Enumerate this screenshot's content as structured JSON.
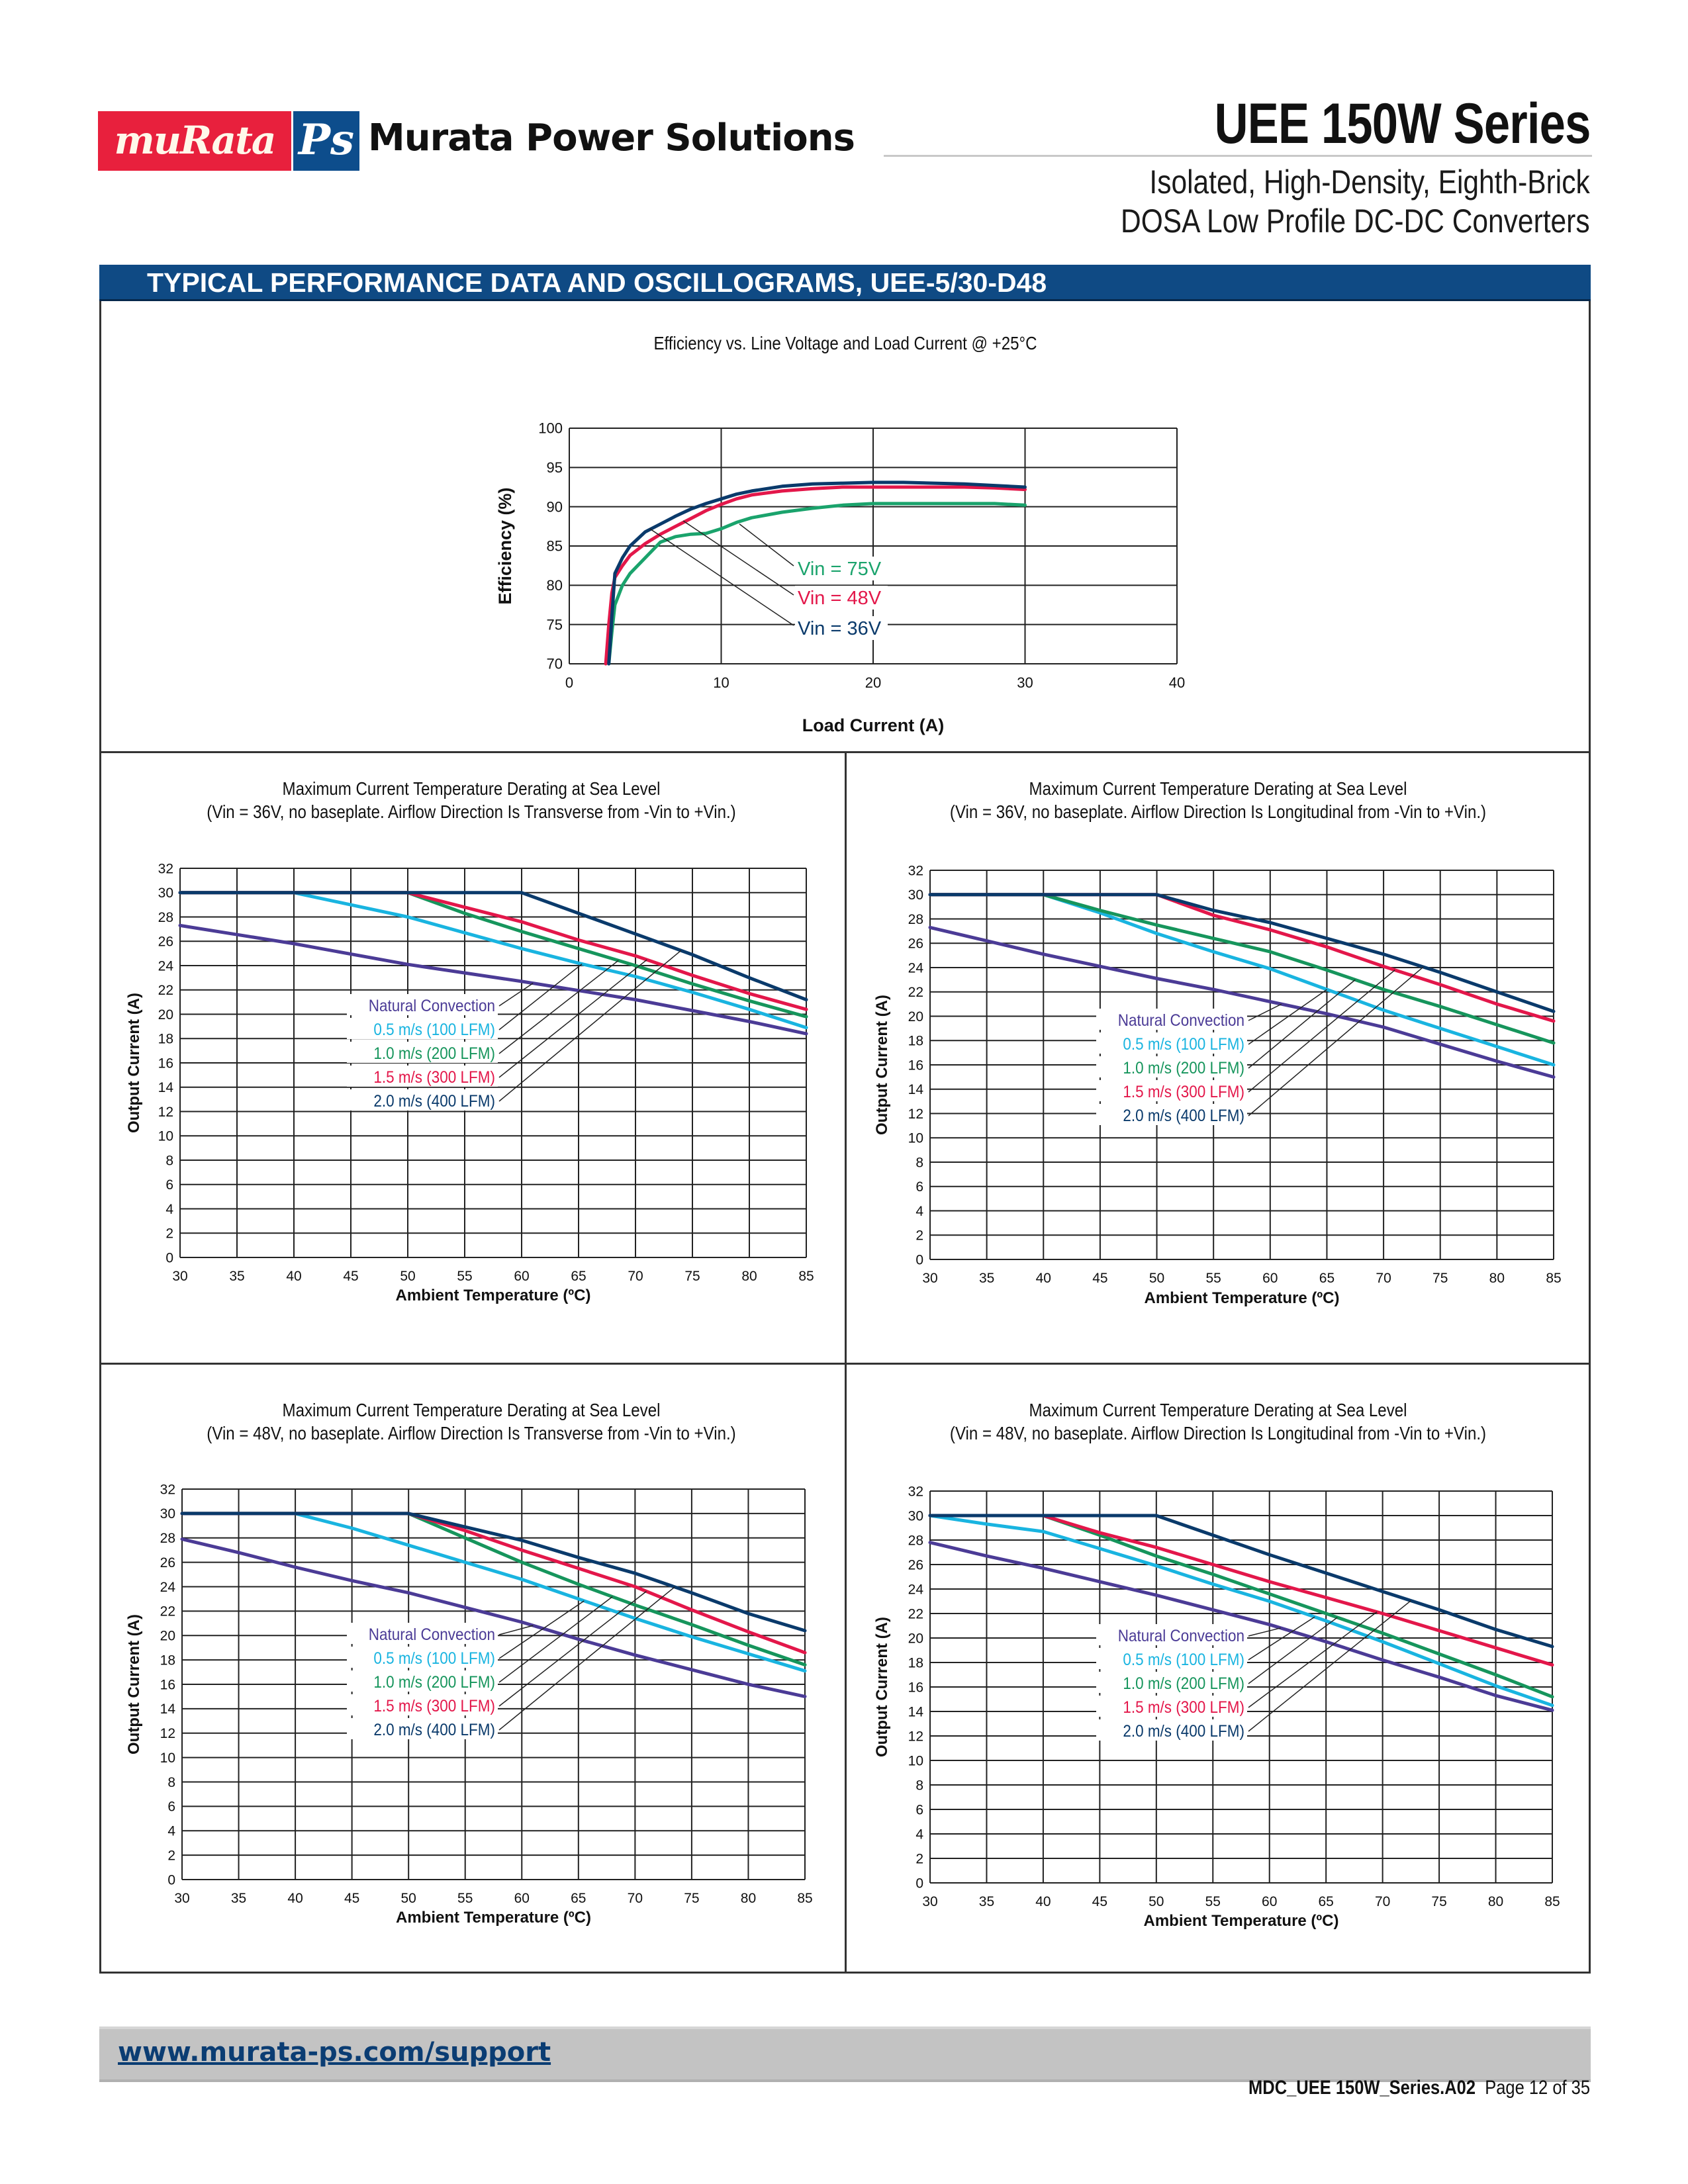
{
  "header": {
    "logo_murata": "muRata",
    "logo_ps": "Ps",
    "brand": "Murata Power Solutions",
    "series_title": "UEE 150W Series",
    "subtitle_line1": "Isolated, High-Density, Eighth-Brick",
    "subtitle_line2": "DOSA Low Profile DC-DC Converters"
  },
  "section": {
    "title": "TYPICAL PERFORMANCE DATA AND OSCILLOGRAMS, UEE-5/30-D48"
  },
  "colors": {
    "brand_red": "#e8203d",
    "brand_blue": "#0d4d8c",
    "section_bar": "#0f4a84",
    "natural": "#4b3b96",
    "air05": "#19b4e0",
    "air10": "#16955c",
    "air15": "#e3174a",
    "air20": "#0a3a6b",
    "vin75": "#1aa36c",
    "vin48": "#e3174a",
    "vin36": "#0a3a6b"
  },
  "chart_data": [
    {
      "type": "line",
      "title": "Efficiency vs. Line Voltage and Load Current @ +25°C",
      "xlabel": "Load Current (A)",
      "ylabel": "Efficiency (%)",
      "xlim": [
        0,
        40
      ],
      "ylim": [
        70,
        100
      ],
      "xticks": [
        "0",
        "10",
        "20",
        "30",
        "40"
      ],
      "yticks": [
        "70",
        "75",
        "80",
        "85",
        "90",
        "95",
        "100"
      ],
      "grid": true,
      "series": [
        {
          "name": "Vin = 75V",
          "color_key": "vin75",
          "x": [
            2.6,
            2.8,
            3.0,
            3.5,
            4,
            5,
            6,
            7,
            8,
            9,
            10,
            11,
            12,
            14,
            16,
            18,
            20,
            22,
            24,
            26,
            28,
            30
          ],
          "y": [
            70,
            74,
            77.5,
            80,
            81.5,
            83.5,
            85.5,
            86.2,
            86.5,
            86.6,
            87.2,
            88,
            88.6,
            89.3,
            89.8,
            90.2,
            90.4,
            90.4,
            90.4,
            90.4,
            90.4,
            90.2
          ]
        },
        {
          "name": "Vin = 48V",
          "color_key": "vin48",
          "x": [
            2.4,
            2.6,
            2.8,
            3.0,
            3.5,
            4,
            5,
            6,
            7,
            8,
            9,
            10,
            11,
            12,
            14,
            16,
            18,
            20,
            22,
            24,
            26,
            28,
            30
          ],
          "y": [
            70,
            75,
            79,
            81,
            82.5,
            83.8,
            85.3,
            86.5,
            87.5,
            88.5,
            89.5,
            90.3,
            91,
            91.5,
            92,
            92.3,
            92.5,
            92.5,
            92.5,
            92.5,
            92.5,
            92.4,
            92.2
          ]
        },
        {
          "name": "Vin = 36V",
          "color_key": "vin36",
          "x": [
            2.6,
            2.8,
            3.0,
            3.5,
            4,
            5,
            6,
            7,
            8,
            9,
            10,
            11,
            12,
            14,
            16,
            18,
            20,
            22,
            24,
            26,
            28,
            30
          ],
          "y": [
            70,
            76,
            81.5,
            83.5,
            85,
            86.8,
            87.8,
            88.8,
            89.7,
            90.4,
            91,
            91.6,
            92,
            92.6,
            92.9,
            93,
            93.1,
            93.1,
            93,
            92.9,
            92.7,
            92.5
          ]
        }
      ],
      "annotations": [
        "Vin = 75V",
        "Vin = 48V",
        "Vin = 36V"
      ]
    },
    {
      "type": "line",
      "title": "Maximum Current Temperature Derating at Sea Level",
      "subtitle": "(Vin = 36V, no baseplate. Airflow Direction Is Transverse from -Vin to +Vin.)",
      "xlabel": "Ambient Temperature (ºC)",
      "ylabel": "Output Current (A)",
      "xlim": [
        30,
        85
      ],
      "ylim": [
        0,
        32
      ],
      "xticks": [
        "30",
        "35",
        "40",
        "45",
        "50",
        "55",
        "60",
        "65",
        "70",
        "75",
        "80",
        "85"
      ],
      "yticks": [
        "0",
        "2",
        "4",
        "6",
        "8",
        "10",
        "12",
        "14",
        "16",
        "18",
        "20",
        "22",
        "24",
        "26",
        "28",
        "30",
        "32"
      ],
      "grid": true,
      "series": [
        {
          "name": "Natural Convection",
          "color_key": "natural",
          "x": [
            30,
            40,
            50,
            60,
            70,
            75,
            80,
            85
          ],
          "y": [
            27.3,
            25.8,
            24.1,
            22.7,
            21.2,
            20.3,
            19.4,
            18.4
          ]
        },
        {
          "name": "0.5 m/s (100 LFM)",
          "color_key": "air05",
          "x": [
            30,
            40,
            50,
            60,
            65,
            70,
            75,
            80,
            85
          ],
          "y": [
            30,
            30,
            28,
            25.4,
            24.2,
            23.1,
            21.8,
            20.4,
            18.9
          ]
        },
        {
          "name": "1.0 m/s (200 LFM)",
          "color_key": "air10",
          "x": [
            30,
            50,
            55,
            60,
            65,
            70,
            75,
            80,
            85
          ],
          "y": [
            30,
            30,
            28.3,
            26.8,
            25.4,
            24,
            22.5,
            21.1,
            19.8
          ]
        },
        {
          "name": "1.5 m/s (300 LFM)",
          "color_key": "air15",
          "x": [
            30,
            50,
            55,
            60,
            65,
            70,
            75,
            80,
            85
          ],
          "y": [
            30,
            30,
            28.8,
            27.6,
            26.1,
            24.8,
            23.2,
            21.7,
            20.4
          ]
        },
        {
          "name": "2.0 m/s (400 LFM)",
          "color_key": "air20",
          "x": [
            30,
            60,
            65,
            70,
            75,
            80,
            85
          ],
          "y": [
            30,
            30,
            28.3,
            26.6,
            24.9,
            23,
            21.2
          ]
        }
      ]
    },
    {
      "type": "line",
      "title": "Maximum Current Temperature Derating at Sea Level",
      "subtitle": "(Vin = 36V, no baseplate. Airflow Direction Is Longitudinal from -Vin to +Vin.)",
      "xlabel": "Ambient Temperature (ºC)",
      "ylabel": "Output Current (A)",
      "xlim": [
        30,
        85
      ],
      "ylim": [
        0,
        32
      ],
      "xticks": [
        "30",
        "35",
        "40",
        "45",
        "50",
        "55",
        "60",
        "65",
        "70",
        "75",
        "80",
        "85"
      ],
      "yticks": [
        "0",
        "2",
        "4",
        "6",
        "8",
        "10",
        "12",
        "14",
        "16",
        "18",
        "20",
        "22",
        "24",
        "26",
        "28",
        "30",
        "32"
      ],
      "grid": true,
      "series": [
        {
          "name": "Natural Convection",
          "color_key": "natural",
          "x": [
            30,
            35,
            40,
            45,
            50,
            55,
            60,
            65,
            70,
            75,
            80,
            85
          ],
          "y": [
            27.3,
            26.2,
            25.1,
            24.1,
            23.1,
            22.2,
            21.2,
            20.2,
            19.1,
            17.7,
            16.3,
            15
          ]
        },
        {
          "name": "0.5 m/s (100 LFM)",
          "color_key": "air05",
          "x": [
            30,
            40,
            45,
            50,
            55,
            60,
            65,
            70,
            75,
            80,
            85
          ],
          "y": [
            30,
            30,
            28.5,
            26.8,
            25.3,
            23.9,
            22.2,
            20.5,
            19,
            17.5,
            16
          ]
        },
        {
          "name": "1.0 m/s (200 LFM)",
          "color_key": "air10",
          "x": [
            30,
            40,
            45,
            50,
            55,
            60,
            65,
            70,
            75,
            80,
            85
          ],
          "y": [
            30,
            30,
            28.7,
            27.5,
            26.4,
            25.3,
            23.8,
            22.2,
            20.8,
            19.3,
            17.8
          ]
        },
        {
          "name": "1.5 m/s (300 LFM)",
          "color_key": "air15",
          "x": [
            30,
            50,
            55,
            60,
            65,
            70,
            75,
            80,
            85
          ],
          "y": [
            30,
            30,
            28.3,
            27.1,
            25.7,
            24.1,
            22.6,
            21,
            19.6
          ]
        },
        {
          "name": "2.0 m/s (400 LFM)",
          "color_key": "air20",
          "x": [
            30,
            50,
            55,
            60,
            65,
            70,
            75,
            80,
            85
          ],
          "y": [
            30,
            30,
            28.7,
            27.7,
            26.4,
            25.1,
            23.6,
            22,
            20.4
          ]
        }
      ]
    },
    {
      "type": "line",
      "title": "Maximum Current Temperature Derating at Sea Level",
      "subtitle": "(Vin = 48V, no baseplate. Airflow Direction Is Transverse from -Vin to +Vin.)",
      "xlabel": "Ambient Temperature (ºC)",
      "ylabel": "Output Current (A)",
      "xlim": [
        30,
        85
      ],
      "ylim": [
        0,
        32
      ],
      "xticks": [
        "30",
        "35",
        "40",
        "45",
        "50",
        "55",
        "60",
        "65",
        "70",
        "75",
        "80",
        "85"
      ],
      "yticks": [
        "0",
        "2",
        "4",
        "6",
        "8",
        "10",
        "12",
        "14",
        "16",
        "18",
        "20",
        "22",
        "24",
        "26",
        "28",
        "30",
        "32"
      ],
      "grid": true,
      "series": [
        {
          "name": "Natural Convection",
          "color_key": "natural",
          "x": [
            30,
            35,
            40,
            45,
            50,
            55,
            60,
            65,
            70,
            75,
            80,
            85
          ],
          "y": [
            27.9,
            26.8,
            25.6,
            24.5,
            23.5,
            22.3,
            21.1,
            19.7,
            18.4,
            17.2,
            16,
            15
          ]
        },
        {
          "name": "0.5 m/s (100 LFM)",
          "color_key": "air05",
          "x": [
            30,
            40,
            45,
            50,
            55,
            60,
            65,
            70,
            75,
            80,
            85
          ],
          "y": [
            30,
            30,
            28.8,
            27.4,
            26,
            24.6,
            23,
            21.4,
            19.9,
            18.5,
            17.1
          ]
        },
        {
          "name": "1.0 m/s (200 LFM)",
          "color_key": "air10",
          "x": [
            30,
            50,
            55,
            60,
            65,
            70,
            75,
            80,
            85
          ],
          "y": [
            30,
            30,
            28,
            26,
            24.2,
            22.5,
            20.9,
            19.2,
            17.6
          ]
        },
        {
          "name": "1.5 m/s (300 LFM)",
          "color_key": "air15",
          "x": [
            30,
            50,
            55,
            60,
            65,
            70,
            75,
            80,
            85
          ],
          "y": [
            30,
            30,
            28.6,
            27,
            25.5,
            24,
            22.1,
            20.3,
            18.6
          ]
        },
        {
          "name": "2.0 m/s (400 LFM)",
          "color_key": "air20",
          "x": [
            30,
            50,
            55,
            60,
            65,
            70,
            75,
            80,
            85
          ],
          "y": [
            30,
            30,
            28.9,
            27.8,
            26.4,
            25.1,
            23.5,
            21.8,
            20.4
          ]
        }
      ]
    },
    {
      "type": "line",
      "title": "Maximum Current Temperature Derating at Sea Level",
      "subtitle": "(Vin = 48V, no baseplate. Airflow Direction Is Longitudinal from -Vin to +Vin.)",
      "xlabel": "Ambient Temperature (ºC)",
      "ylabel": "Output Current (A)",
      "xlim": [
        30,
        85
      ],
      "ylim": [
        0,
        32
      ],
      "xticks": [
        "30",
        "35",
        "40",
        "45",
        "50",
        "55",
        "60",
        "65",
        "70",
        "75",
        "80",
        "85"
      ],
      "yticks": [
        "0",
        "2",
        "4",
        "6",
        "8",
        "10",
        "12",
        "14",
        "16",
        "18",
        "20",
        "22",
        "24",
        "26",
        "28",
        "30",
        "32"
      ],
      "grid": true,
      "series": [
        {
          "name": "Natural Convection",
          "color_key": "natural",
          "x": [
            30,
            35,
            40,
            45,
            50,
            55,
            60,
            65,
            70,
            75,
            80,
            85
          ],
          "y": [
            27.8,
            26.7,
            25.7,
            24.6,
            23.5,
            22.3,
            21.1,
            19.7,
            18.2,
            16.8,
            15.3,
            14.1
          ]
        },
        {
          "name": "0.5 m/s (100 LFM)",
          "color_key": "air05",
          "x": [
            30,
            35,
            40,
            45,
            50,
            55,
            60,
            65,
            70,
            75,
            80,
            85
          ],
          "y": [
            30,
            29.3,
            28.7,
            27.3,
            25.9,
            24.4,
            23,
            21.4,
            19.7,
            17.9,
            16.1,
            14.5
          ]
        },
        {
          "name": "1.0 m/s (200 LFM)",
          "color_key": "air10",
          "x": [
            30,
            40,
            45,
            50,
            55,
            60,
            65,
            70,
            75,
            80,
            85
          ],
          "y": [
            30,
            30,
            28.4,
            26.7,
            25.2,
            23.6,
            22,
            20.4,
            18.7,
            17,
            15.2
          ]
        },
        {
          "name": "1.5 m/s (300 LFM)",
          "color_key": "air15",
          "x": [
            30,
            40,
            45,
            50,
            55,
            60,
            65,
            70,
            75,
            80,
            85
          ],
          "y": [
            30,
            30,
            28.6,
            27.4,
            26,
            24.6,
            23.3,
            22,
            20.6,
            19.2,
            17.8
          ]
        },
        {
          "name": "2.0 m/s (400 LFM)",
          "color_key": "air20",
          "x": [
            30,
            50,
            55,
            60,
            65,
            70,
            75,
            80,
            85
          ],
          "y": [
            30,
            30,
            28.4,
            26.8,
            25.3,
            23.8,
            22.3,
            20.7,
            19.3
          ]
        }
      ]
    }
  ],
  "footer": {
    "link": "www.murata-ps.com/support",
    "doc_id": "MDC_UEE 150W_Series.A02",
    "page": "Page 12 of 35"
  }
}
